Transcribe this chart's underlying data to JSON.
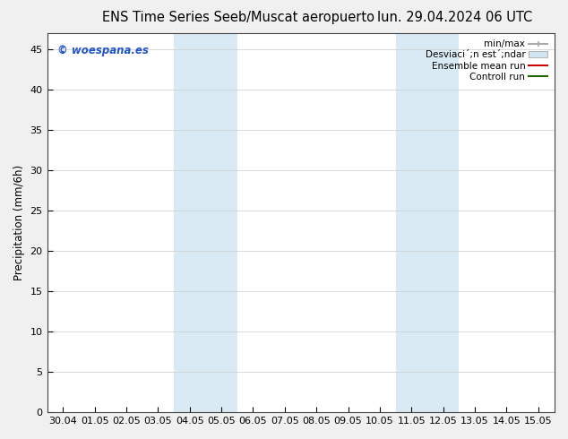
{
  "title_left": "ENS Time Series Seeb/Muscat aeropuerto",
  "title_right": "lun. 29.04.2024 06 UTC",
  "ylabel": "Precipitation (mm/6h)",
  "ylim": [
    0,
    47
  ],
  "yticks": [
    0,
    5,
    10,
    15,
    20,
    25,
    30,
    35,
    40,
    45
  ],
  "xtick_labels": [
    "30.04",
    "01.05",
    "02.05",
    "03.05",
    "04.05",
    "05.05",
    "06.05",
    "07.05",
    "08.05",
    "09.05",
    "10.05",
    "11.05",
    "12.05",
    "13.05",
    "14.05",
    "15.05"
  ],
  "shaded_regions": [
    {
      "xstart": 4,
      "xend": 6,
      "color": "#daeaf5"
    },
    {
      "xstart": 11,
      "xend": 13,
      "color": "#daeaf5"
    }
  ],
  "legend_minmax_color": "#aaaaaa",
  "legend_std_color": "#d0e5f0",
  "legend_ens_color": "#cc0000",
  "legend_ctrl_color": "#226600",
  "watermark": "© woespana.es",
  "bg_color": "#f0f0f0",
  "plot_bg_color": "#ffffff",
  "title_fontsize": 10.5,
  "ylabel_fontsize": 8.5,
  "tick_fontsize": 8,
  "legend_fontsize": 7.5
}
